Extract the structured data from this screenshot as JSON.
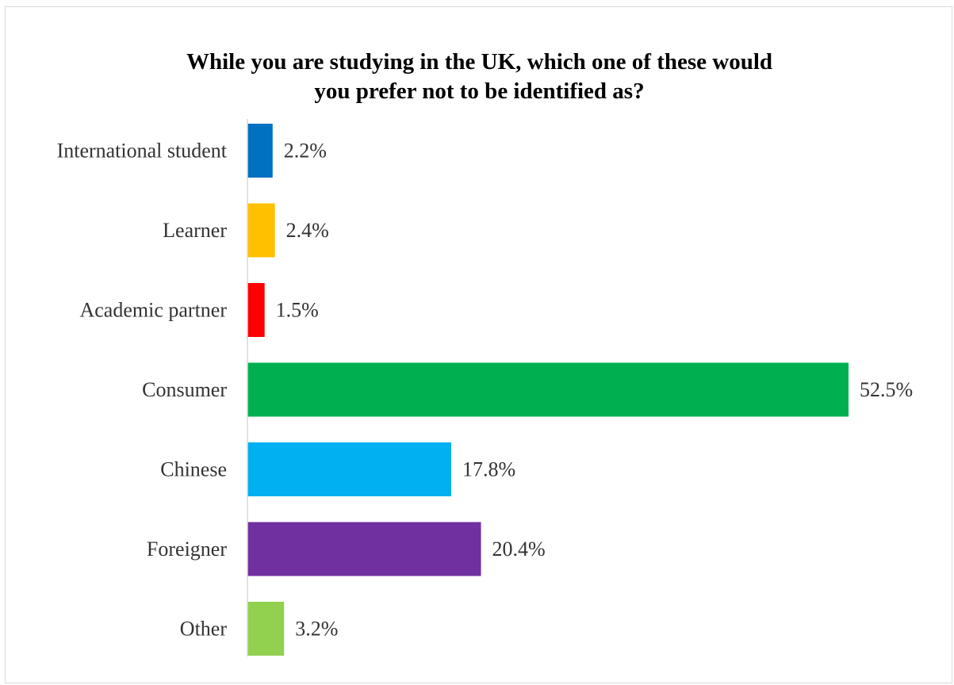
{
  "chart_data": {
    "type": "bar",
    "orientation": "horizontal",
    "title": "While you are studying in the UK, which one of these would you prefer not to be identified as?",
    "categories": [
      "International student",
      "Learner",
      "Academic partner",
      "Consumer",
      "Chinese",
      "Foreigner",
      "Other"
    ],
    "values": [
      2.2,
      2.4,
      1.5,
      52.5,
      17.8,
      20.4,
      3.2
    ],
    "value_labels": [
      "2.2%",
      "2.4%",
      "1.5%",
      "52.5%",
      "17.8%",
      "20.4%",
      "3.2%"
    ],
    "colors": [
      "#0070c0",
      "#ffc000",
      "#ff0000",
      "#00b050",
      "#00b0f0",
      "#7030a0",
      "#92d050"
    ],
    "xlabel": "",
    "ylabel": "",
    "xlim": [
      0,
      52.5
    ],
    "grid": false,
    "legend": "none"
  }
}
